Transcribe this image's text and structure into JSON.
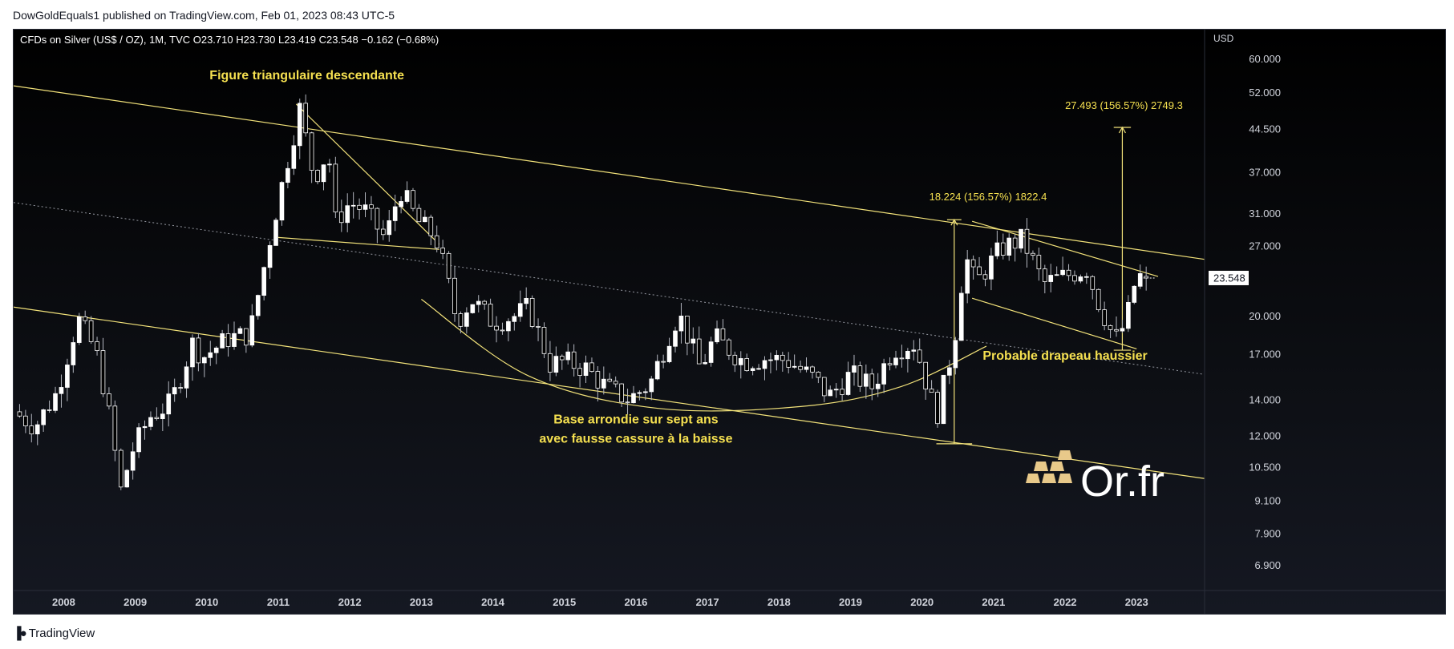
{
  "header": {
    "published_line": "DowGoldEquals1 published on TradingView.com, Feb 01, 2023 08:43 UTC-5"
  },
  "footer": {
    "brand": "TradingView"
  },
  "watermark": {
    "text": "Or.fr"
  },
  "colors": {
    "candle_body": "#ffffff",
    "wick": "#b2b5be",
    "trendline": "#f2e27a",
    "annotation_text": "#f5e050",
    "axis_text": "#d1d4dc",
    "midline": "#9598a1"
  },
  "chart_data": {
    "type": "candlestick",
    "symbol_line": "CFDs on Silver (US$ / OZ), 1M, TVC  O23.710  H23.730  L23.419  C23.548  −0.162 (−0.68%)",
    "y_axis_unit": "USD",
    "scale": "log",
    "ylim": [
      6.2,
      68
    ],
    "xlim": [
      2007.3,
      2023.95
    ],
    "y_ticks": [
      "60.000",
      "52.000",
      "44.500",
      "37.000",
      "31.000",
      "27.000",
      "23.548",
      "20.000",
      "17.000",
      "14.000",
      "12.000",
      "10.500",
      "9.100",
      "7.900",
      "6.900"
    ],
    "y_tick_values": [
      60,
      52,
      44.5,
      37,
      31,
      27,
      23.548,
      20,
      17,
      14,
      12,
      10.5,
      9.1,
      7.9,
      6.9
    ],
    "last_price": "23.548",
    "x_ticks": [
      "2008",
      "2009",
      "2010",
      "2011",
      "2012",
      "2013",
      "2014",
      "2015",
      "2016",
      "2017",
      "2018",
      "2019",
      "2020",
      "2021",
      "2022",
      "2023"
    ],
    "x_tick_values": [
      2008,
      2009,
      2010,
      2011,
      2012,
      2013,
      2014,
      2015,
      2016,
      2017,
      2018,
      2019,
      2020,
      2021,
      2022,
      2023
    ],
    "close_path": [
      [
        2007.3,
        13.3
      ],
      [
        2007.6,
        12.5
      ],
      [
        2007.9,
        14.4
      ],
      [
        2008.2,
        19.8
      ],
      [
        2008.45,
        17.2
      ],
      [
        2008.6,
        14
      ],
      [
        2008.8,
        9.5
      ],
      [
        2008.95,
        11.2
      ],
      [
        2009.2,
        13
      ],
      [
        2009.5,
        13.8
      ],
      [
        2009.8,
        17.8
      ],
      [
        2009.95,
        16.8
      ],
      [
        2010.3,
        18.2
      ],
      [
        2010.6,
        18.5
      ],
      [
        2010.95,
        30.6
      ],
      [
        2011.15,
        40
      ],
      [
        2011.3,
        48.5
      ],
      [
        2011.5,
        36
      ],
      [
        2011.7,
        40.5
      ],
      [
        2011.8,
        30
      ],
      [
        2012.0,
        32.5
      ],
      [
        2012.2,
        31.5
      ],
      [
        2012.5,
        27.8
      ],
      [
        2012.7,
        34.5
      ],
      [
        2012.95,
        30
      ],
      [
        2013.2,
        28
      ],
      [
        2013.35,
        23.8
      ],
      [
        2013.5,
        19.5
      ],
      [
        2013.7,
        21.5
      ],
      [
        2014.0,
        19.5
      ],
      [
        2014.3,
        20
      ],
      [
        2014.5,
        20.8
      ],
      [
        2014.8,
        16.3
      ],
      [
        2015.0,
        16.5
      ],
      [
        2015.3,
        16
      ],
      [
        2015.6,
        14.7
      ],
      [
        2015.9,
        14
      ],
      [
        2016.2,
        15
      ],
      [
        2016.5,
        19
      ],
      [
        2016.6,
        20.2
      ],
      [
        2016.9,
        16
      ],
      [
        2017.1,
        18.3
      ],
      [
        2017.5,
        16.5
      ],
      [
        2017.8,
        16.7
      ],
      [
        2018.1,
        16.6
      ],
      [
        2018.5,
        15.3
      ],
      [
        2018.7,
        14.2
      ],
      [
        2019.0,
        15.6
      ],
      [
        2019.3,
        14.8
      ],
      [
        2019.6,
        17.4
      ],
      [
        2019.9,
        17.8
      ],
      [
        2020.2,
        13
      ],
      [
        2020.45,
        18
      ],
      [
        2020.6,
        26
      ],
      [
        2020.75,
        23
      ],
      [
        2021.1,
        26.7
      ],
      [
        2021.4,
        27.8
      ],
      [
        2021.7,
        23
      ],
      [
        2022.1,
        24
      ],
      [
        2022.3,
        24.5
      ],
      [
        2022.45,
        21.5
      ],
      [
        2022.7,
        18
      ],
      [
        2022.85,
        19.5
      ],
      [
        2023.0,
        23.8
      ],
      [
        2023.1,
        23.55
      ]
    ],
    "annotations": [
      {
        "label": "Figure triangulaire descendante",
        "x": 2011.4,
        "y": 55,
        "align": "middle"
      },
      {
        "label": "Base arrondie sur sept ans",
        "x": 2016.0,
        "y": 12.65,
        "align": "middle"
      },
      {
        "label": "avec fausse cassure à la baisse",
        "x": 2016.0,
        "y": 11.65,
        "align": "middle"
      },
      {
        "label": "Probable drapeau haussier",
        "x": 2022.0,
        "y": 16.6,
        "align": "middle"
      },
      {
        "label": "18.224 (156.57%) 1822.4",
        "x": 2020.1,
        "y": 32.8,
        "align": "start"
      },
      {
        "label": "27.493 (156.57%) 2749.3",
        "x": 2022.0,
        "y": 48.5,
        "align": "start"
      }
    ],
    "trendlines": [
      {
        "name": "channel-upper",
        "from": [
          2007.3,
          53.5
        ],
        "to": [
          2023.95,
          25.5
        ],
        "dash": false
      },
      {
        "name": "channel-mid",
        "from": [
          2007.3,
          32.5
        ],
        "to": [
          2023.95,
          15.6
        ],
        "dash": true
      },
      {
        "name": "channel-lower",
        "from": [
          2007.3,
          20.8
        ],
        "to": [
          2023.95,
          10
        ],
        "dash": false
      },
      {
        "name": "triangle-upper",
        "from": [
          2011.25,
          49.5
        ],
        "to": [
          2013.25,
          27.2
        ],
        "dash": false
      },
      {
        "name": "triangle-lower",
        "from": [
          2011.0,
          28
        ],
        "to": [
          2013.25,
          26.6
        ],
        "dash": false
      },
      {
        "name": "flag-upper",
        "from": [
          2020.7,
          30
        ],
        "to": [
          2023.3,
          23.7
        ],
        "dash": false
      },
      {
        "name": "flag-lower",
        "from": [
          2020.7,
          21.6
        ],
        "to": [
          2023.0,
          17.4
        ],
        "dash": false
      },
      {
        "name": "measure-1-vertical",
        "from": [
          2020.45,
          11.6
        ],
        "to": [
          2020.45,
          30.2
        ],
        "dash": false
      },
      {
        "name": "measure-1-top",
        "from": [
          2020.35,
          30.2
        ],
        "to": [
          2020.55,
          30.2
        ],
        "dash": false
      },
      {
        "name": "measure-1-bottom",
        "from": [
          2020.2,
          11.6
        ],
        "to": [
          2020.7,
          11.6
        ],
        "dash": false
      },
      {
        "name": "measure-2-vertical",
        "from": [
          2022.8,
          17.3
        ],
        "to": [
          2022.8,
          44.8
        ],
        "dash": false
      },
      {
        "name": "measure-2-top",
        "from": [
          2022.68,
          44.8
        ],
        "to": [
          2022.92,
          44.8
        ],
        "dash": false
      },
      {
        "name": "measure-2-bottom",
        "from": [
          2022.68,
          17.3
        ],
        "to": [
          2022.92,
          17.3
        ],
        "dash": false
      }
    ],
    "rounded_base": {
      "points": [
        [
          2013.0,
          21.5
        ],
        [
          2014.5,
          15.5
        ],
        [
          2016.3,
          13.5
        ],
        [
          2018.3,
          13.6
        ],
        [
          2019.7,
          14.8
        ],
        [
          2020.9,
          17.6
        ]
      ]
    }
  }
}
